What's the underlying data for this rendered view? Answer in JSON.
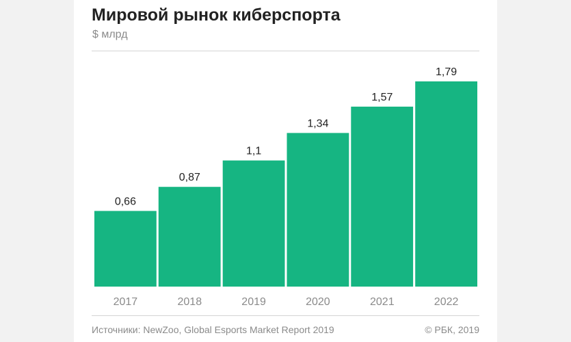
{
  "header": {
    "title": "Мировой рынок киберспорта",
    "subtitle": "$ млрд"
  },
  "footer": {
    "source": "Источники: NewZoo, Global Esports Market Report 2019",
    "copyright": "© РБК, 2019"
  },
  "colors": {
    "bar": "#16b582",
    "background": "#ffffff"
  },
  "chart_data": {
    "type": "bar",
    "title": "Мировой рынок киберспорта",
    "ylabel": "$ млрд",
    "xlabel": "",
    "categories": [
      "2017",
      "2018",
      "2019",
      "2020",
      "2021",
      "2022"
    ],
    "values": [
      0.66,
      0.87,
      1.1,
      1.34,
      1.57,
      1.79
    ],
    "value_labels": [
      "0,66",
      "0,87",
      "1,1",
      "1,34",
      "1,57",
      "1,79"
    ],
    "ylim": [
      0,
      1.79
    ],
    "grid": false,
    "legend": "none"
  }
}
